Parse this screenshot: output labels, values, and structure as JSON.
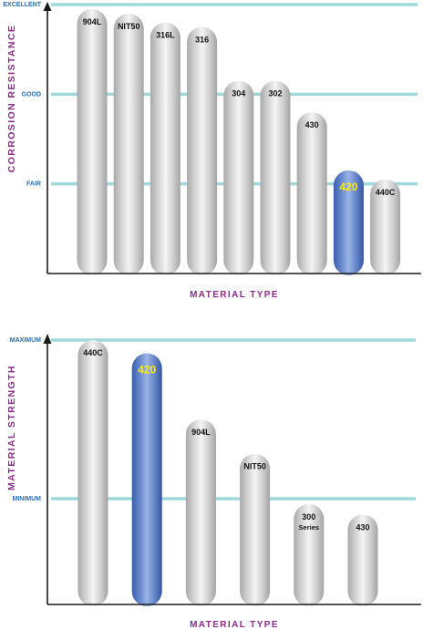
{
  "colors": {
    "gridline": "#9fd9dc",
    "axis": "#1a1a1a",
    "axis_title": "#8e2a8e",
    "tick_label": "#2a6fb5",
    "highlight_label": "#ffee00"
  },
  "chart_data": [
    {
      "type": "bar",
      "ylabel": "CORROSION RESISTANCE",
      "xlabel": "MATERIAL TYPE",
      "ylim": [
        0,
        3
      ],
      "yticks": [
        {
          "value": 1,
          "label": "FAIR"
        },
        {
          "value": 2,
          "label": "GOOD"
        },
        {
          "value": 3,
          "label": "EXCELLENT"
        }
      ],
      "categories": [
        "904L",
        "NIT50",
        "316L",
        "316",
        "304",
        "302",
        "430",
        "420",
        "440C"
      ],
      "values": [
        2.95,
        2.9,
        2.8,
        2.75,
        2.15,
        2.15,
        1.8,
        1.15,
        1.05
      ],
      "highlight": "420",
      "grid": true,
      "legend": "none"
    },
    {
      "type": "bar",
      "ylabel": "MATERIAL STRENGTH",
      "xlabel": "MATERIAL TYPE",
      "ylim": [
        0,
        1
      ],
      "yticks": [
        {
          "value": 0.4,
          "label": "MINIMUM"
        },
        {
          "value": 1,
          "label": "MAXIMUM"
        }
      ],
      "categories": [
        "440C",
        "420",
        "904L",
        "NIT50",
        "300",
        "430"
      ],
      "sublabels": [
        "",
        "",
        "",
        "",
        "Series",
        ""
      ],
      "values": [
        1.0,
        0.95,
        0.7,
        0.57,
        0.38,
        0.34
      ],
      "highlight": "420",
      "grid": true,
      "legend": "none"
    }
  ]
}
